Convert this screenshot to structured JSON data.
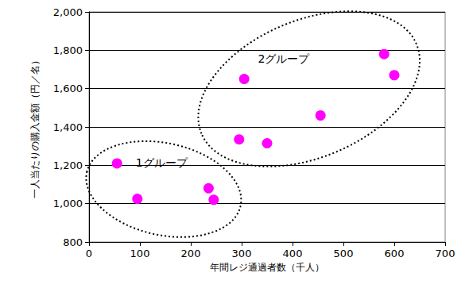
{
  "chart_data": {
    "type": "scatter",
    "xlabel": "年間レジ通過者数（千人）",
    "ylabel": "一人当たりの購入金額（円／名）",
    "xlim": [
      0,
      700
    ],
    "xticks": [
      0,
      100,
      200,
      300,
      400,
      500,
      600,
      700
    ],
    "ylim": [
      800,
      2000
    ],
    "yticks": [
      800,
      {
        "value": 1000,
        "label": "1,000"
      },
      {
        "value": 1200,
        "label": "1,200"
      },
      {
        "value": 1400,
        "label": "1,400"
      },
      {
        "value": 1600,
        "label": "1,600"
      },
      {
        "value": 1800,
        "label": "1,800"
      },
      {
        "value": 2000,
        "label": "2,000"
      }
    ],
    "grid": true,
    "series": [
      {
        "name": "1グループ",
        "color": "#ff00ff",
        "marker": "circle",
        "x": [
          55,
          95,
          235,
          245
        ],
        "values": [
          1210,
          1025,
          1080,
          1020
        ]
      },
      {
        "name": "2グループ",
        "color": "#ff00ff",
        "marker": "circle",
        "x": [
          295,
          305,
          350,
          455,
          580,
          600
        ],
        "values": [
          1335,
          1650,
          1315,
          1460,
          1780,
          1670
        ]
      }
    ]
  }
}
